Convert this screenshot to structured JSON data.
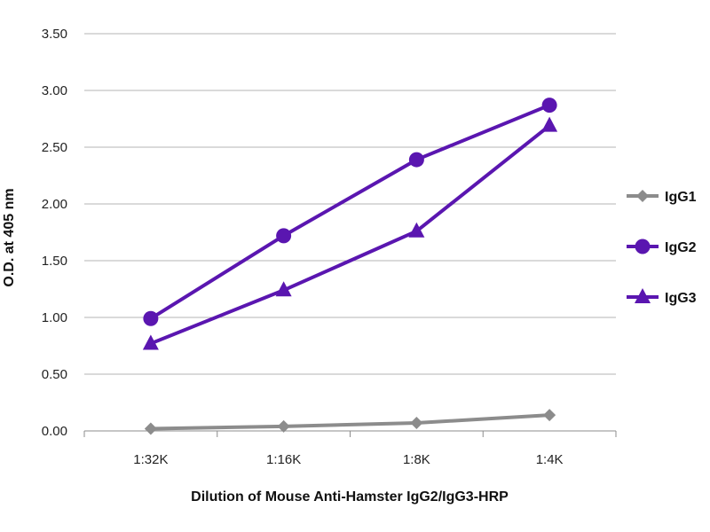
{
  "chart_data": {
    "type": "line",
    "title": "",
    "xlabel": "Dilution of Mouse Anti-Hamster IgG2/IgG3-HRP",
    "ylabel": "O.D. at 405 nm",
    "categories": [
      "1:32K",
      "1:16K",
      "1:8K",
      "1:4K"
    ],
    "ylim": [
      0,
      3.5
    ],
    "yticks": [
      "0.00",
      "0.50",
      "1.00",
      "1.50",
      "2.00",
      "2.50",
      "3.00",
      "3.50"
    ],
    "grid": "horizontal",
    "legend_position": "right",
    "series": [
      {
        "name": "IgG1",
        "marker": "diamond",
        "color": "#8c8c8c",
        "values": [
          0.02,
          0.04,
          0.07,
          0.14
        ]
      },
      {
        "name": "IgG2",
        "marker": "circle",
        "color": "#5a16b0",
        "values": [
          0.99,
          1.72,
          2.39,
          2.87
        ]
      },
      {
        "name": "IgG3",
        "marker": "triangle",
        "color": "#5a16b0",
        "values": [
          0.77,
          1.24,
          1.76,
          2.69
        ]
      }
    ]
  }
}
